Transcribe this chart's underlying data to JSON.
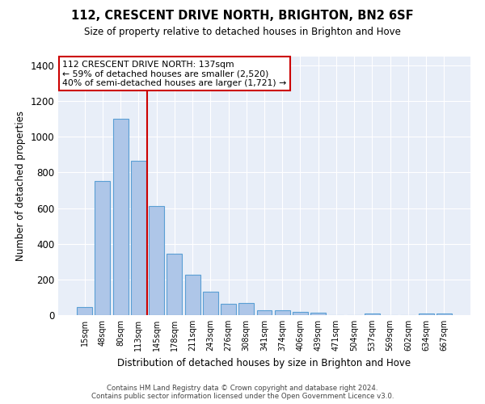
{
  "title": "112, CRESCENT DRIVE NORTH, BRIGHTON, BN2 6SF",
  "subtitle": "Size of property relative to detached houses in Brighton and Hove",
  "xlabel": "Distribution of detached houses by size in Brighton and Hove",
  "ylabel": "Number of detached properties",
  "footer1": "Contains HM Land Registry data © Crown copyright and database right 2024.",
  "footer2": "Contains public sector information licensed under the Open Government Licence v3.0.",
  "annotation_line1": "112 CRESCENT DRIVE NORTH: 137sqm",
  "annotation_line2": "← 59% of detached houses are smaller (2,520)",
  "annotation_line3": "40% of semi-detached houses are larger (1,721) →",
  "bar_color": "#aec6e8",
  "bar_edge_color": "#5a9fd4",
  "bg_color": "#e8eef8",
  "grid_color": "#ffffff",
  "red_line_color": "#cc0000",
  "categories": [
    "15sqm",
    "48sqm",
    "80sqm",
    "113sqm",
    "145sqm",
    "178sqm",
    "211sqm",
    "243sqm",
    "276sqm",
    "308sqm",
    "341sqm",
    "374sqm",
    "406sqm",
    "439sqm",
    "471sqm",
    "504sqm",
    "537sqm",
    "569sqm",
    "602sqm",
    "634sqm",
    "667sqm"
  ],
  "values": [
    47,
    750,
    1100,
    867,
    612,
    345,
    227,
    130,
    63,
    67,
    25,
    27,
    18,
    15,
    0,
    0,
    10,
    0,
    0,
    10,
    10
  ],
  "ylim": [
    0,
    1450
  ],
  "yticks": [
    0,
    200,
    400,
    600,
    800,
    1000,
    1200,
    1400
  ]
}
